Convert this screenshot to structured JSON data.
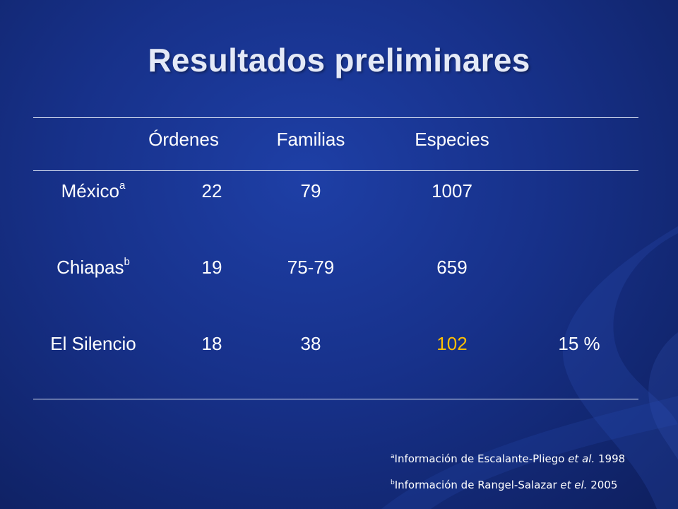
{
  "slide": {
    "title": "Resultados preliminares"
  },
  "table": {
    "headers": [
      "",
      "Órdenes",
      "Familias",
      "Especies",
      ""
    ],
    "rows": [
      {
        "region": "México",
        "marker": "a",
        "ordenes": "22",
        "familias": "79",
        "especies": "1007",
        "extra": ""
      },
      {
        "region": "Chiapas",
        "marker": "b",
        "ordenes": "19",
        "familias": "75-79",
        "especies": "659",
        "extra": ""
      },
      {
        "region": "El Silencio",
        "marker": "",
        "ordenes": "18",
        "familias": "38",
        "especies": "102",
        "extra": "15 %"
      }
    ]
  },
  "footnotes": [
    {
      "marker": "a",
      "text": "Información de Escalante-Pliego ",
      "italic": "et al.",
      "year": " 1998"
    },
    {
      "marker": "b",
      "text": "Información de Rangel-Salazar ",
      "italic": "et el.",
      "year": " 2005"
    }
  ],
  "colors": {
    "background": "#17318a",
    "highlight": "#ffbf00",
    "text": "#ffffff"
  }
}
